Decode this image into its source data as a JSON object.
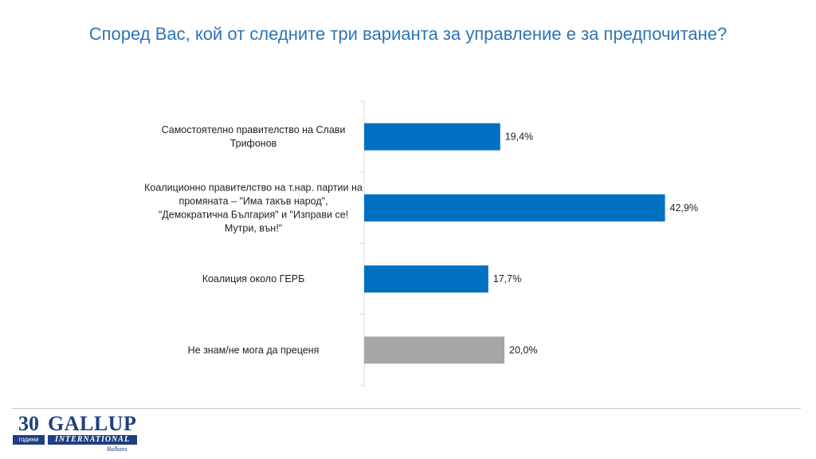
{
  "chart_data": {
    "type": "bar",
    "orientation": "horizontal",
    "title": "Според Вас, кой от следните три варианта за управление е за предпочитане?",
    "categories": [
      "Самостоятелно правителство на Слави Трифонов",
      "Коалиционно правителство на т.нар. партии на промяната – \"Има такъв народ\", \"Демократична България\" и \"Изправи се! Мутри, вън!\"",
      "Коалиция около ГЕРБ",
      "Не знам/не мога да преценя"
    ],
    "category_lines": [
      [
        "Самостоятелно правителство на Слави",
        "Трифонов"
      ],
      [
        "Коалиционно правителство на т.нар. партии на",
        "промяната – \"Има такъв народ\",",
        "\"Демократична България\" и \"Изправи се!",
        "Мутри, вън!\""
      ],
      [
        "Коалиция около ГЕРБ"
      ],
      [
        "Не знам/не мога да преценя"
      ]
    ],
    "values": [
      19.4,
      42.9,
      17.7,
      20.0
    ],
    "value_labels": [
      "19,4%",
      "42,9%",
      "17,7%",
      "20,0%"
    ],
    "colors": [
      "#0070c0",
      "#0070c0",
      "#0070c0",
      "#a6a6a6"
    ],
    "xlim": [
      0,
      50
    ],
    "grid": false,
    "legend": "none"
  },
  "footer": {
    "logo_number": "30",
    "logo_years": "години",
    "logo_name": "GALLUP",
    "logo_international": "INTERNATIONAL",
    "logo_region": "Balkans"
  }
}
